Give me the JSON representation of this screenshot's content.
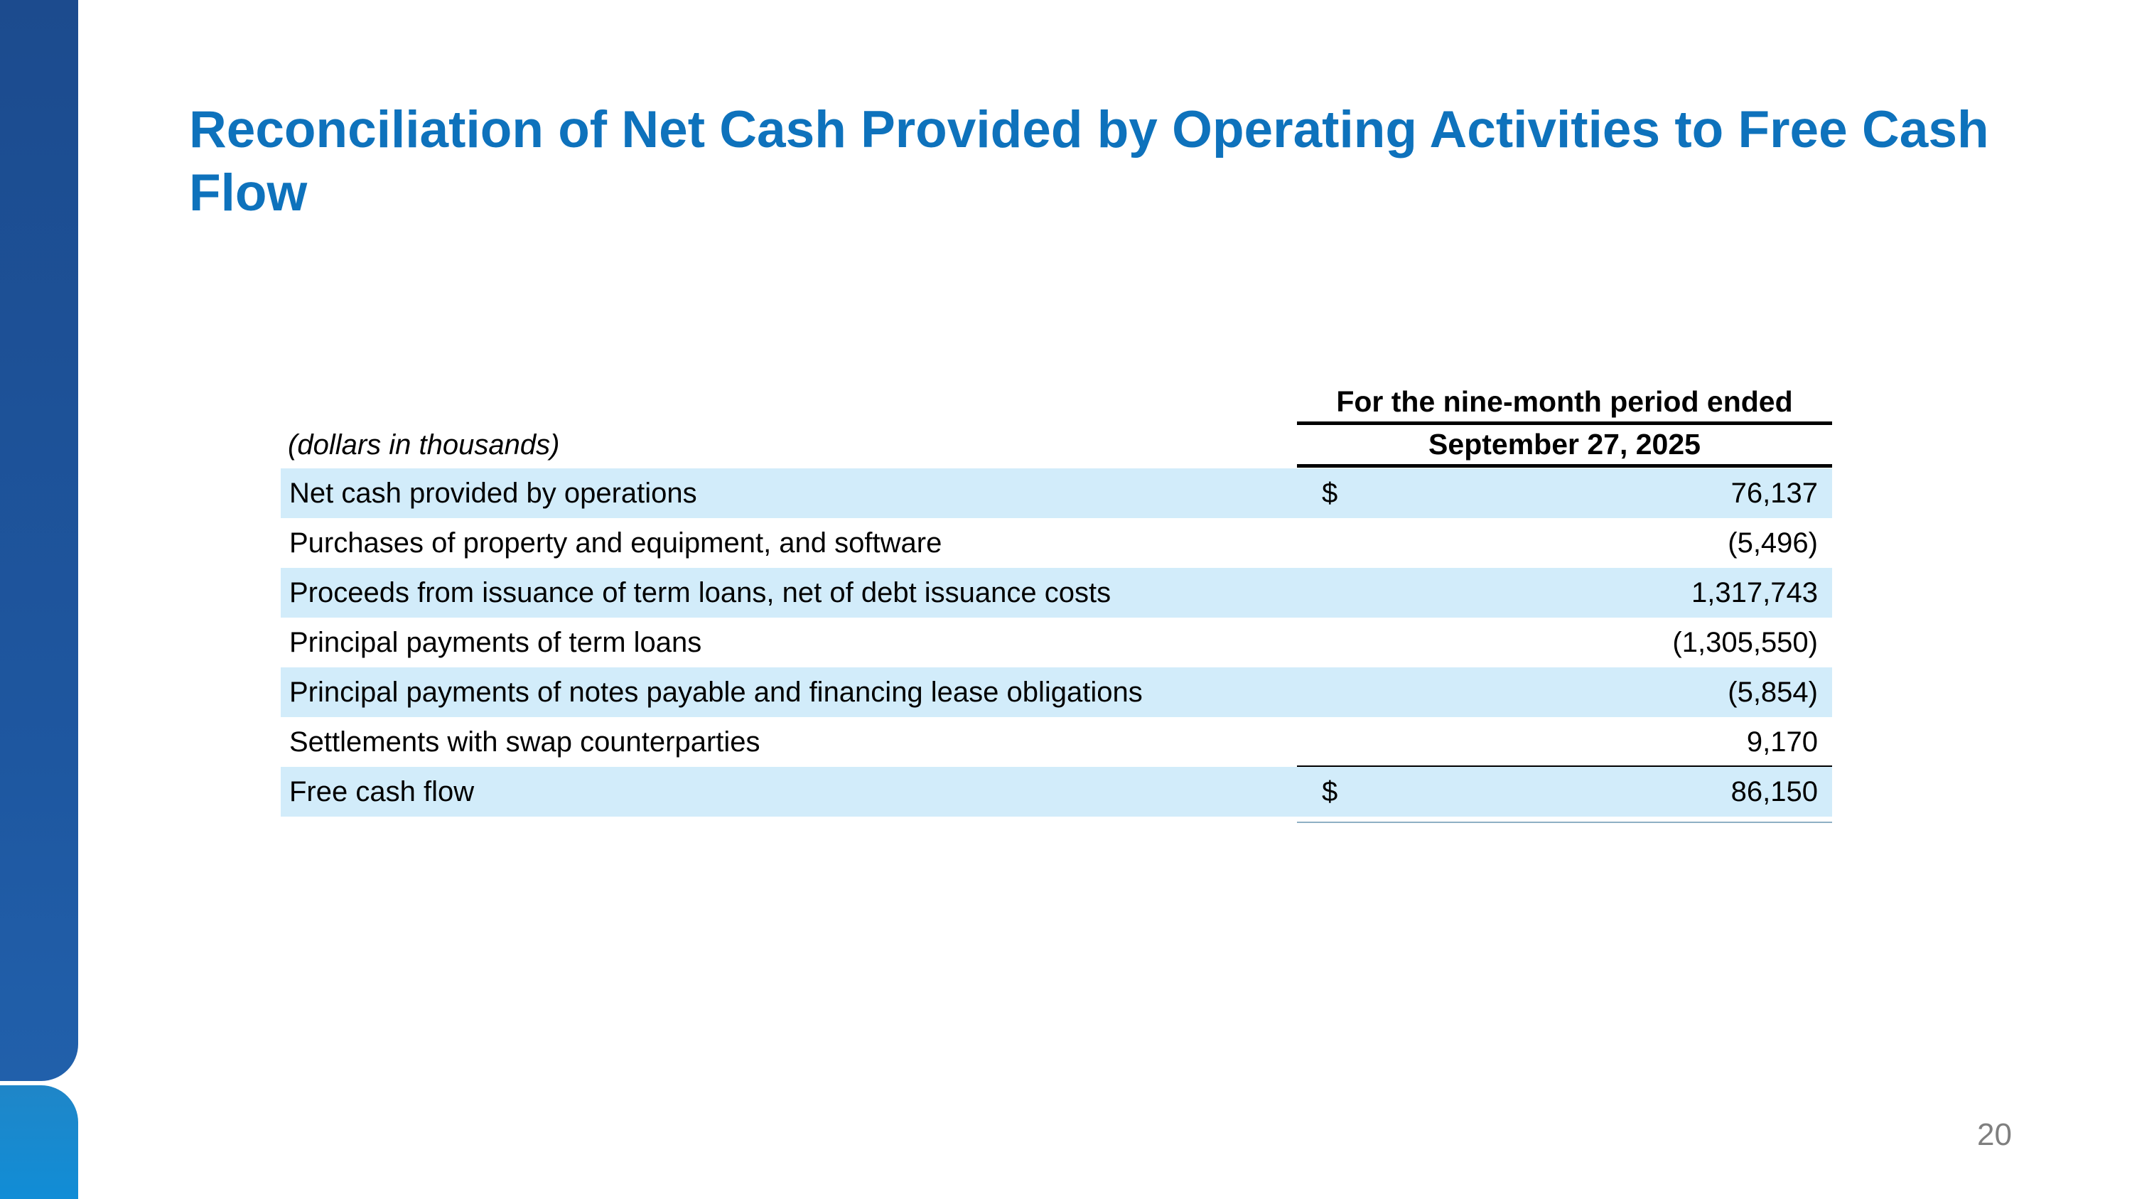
{
  "slide": {
    "title": "Reconciliation of Net Cash Provided by Operating Activities to Free Cash Flow",
    "page_number": "20"
  },
  "table": {
    "period_header": "For the nine-month period ended",
    "date_header": "September 27, 2025",
    "units_note": "(dollars in thousands)",
    "rows": [
      {
        "label": "Net cash provided by operations",
        "currency": "$",
        "value": "76,137",
        "shaded": true,
        "total": false
      },
      {
        "label": "Purchases of property and equipment, and software",
        "currency": "",
        "value": "(5,496)",
        "shaded": false,
        "total": false
      },
      {
        "label": "Proceeds from issuance of term loans, net of debt issuance costs",
        "currency": "",
        "value": "1,317,743",
        "shaded": true,
        "total": false
      },
      {
        "label": "Principal payments of term loans",
        "currency": "",
        "value": "(1,305,550)",
        "shaded": false,
        "total": false
      },
      {
        "label": "Principal payments of notes payable and financing lease obligations",
        "currency": "",
        "value": "(5,854)",
        "shaded": true,
        "total": false
      },
      {
        "label": "Settlements with swap counterparties",
        "currency": "",
        "value": "9,170",
        "shaded": false,
        "total": false
      },
      {
        "label": "Free cash flow",
        "currency": "$",
        "value": "86,150",
        "shaded": true,
        "total": true
      }
    ]
  },
  "colors": {
    "title_blue": "#0e72bc",
    "row_shade_blue": "#d2ecfa",
    "sidebar_dark_blue": "#1e57a0",
    "sidebar_light_blue": "#168bd4",
    "rule_black": "#000000",
    "page_number_gray": "#7f7f7f"
  }
}
